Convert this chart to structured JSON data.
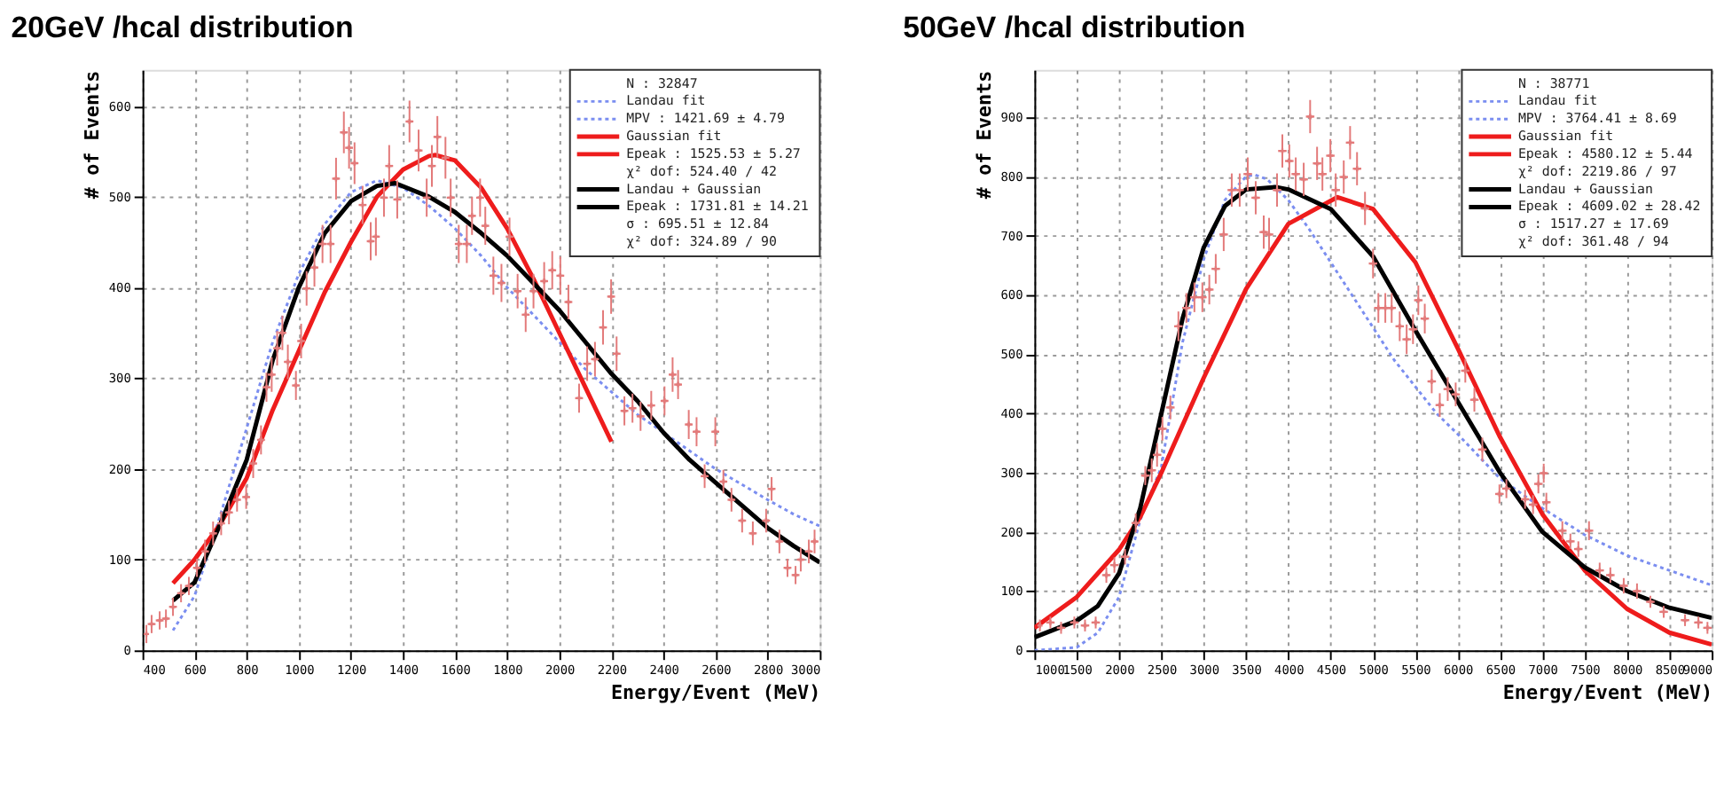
{
  "chart_data": [
    {
      "type": "line",
      "title": "20GeV /hcal distribution",
      "xlabel": "Energy/Event (MeV)",
      "ylabel": "# of Events",
      "xlim": [
        400,
        3000
      ],
      "ylim": [
        0,
        640
      ],
      "xticks": [
        400,
        600,
        800,
        1000,
        1200,
        1400,
        1600,
        1800,
        2000,
        2200,
        2400,
        2600,
        2800,
        3000
      ],
      "yticks": [
        0,
        100,
        200,
        300,
        400,
        500,
        600
      ],
      "grid": true,
      "legend": "top right",
      "annotations": [
        "N : 32847",
        "MPV : 1421.69 ± 4.79",
        "Epeak : 1525.53 ± 5.27",
        "χ² dof: 524.40 / 42",
        "Epeak : 1731.81 ± 14.21",
        "σ : 695.51 ± 12.84",
        "χ² dof: 324.89 / 90"
      ],
      "series": [
        {
          "type": "scatter",
          "marker": "cross",
          "color": "#e37a7a",
          "x": [
            415,
            435,
            466,
            490,
            517,
            548,
            578,
            609,
            640,
            671,
            702,
            732,
            763,
            798,
            825,
            855,
            876,
            896,
            917,
            937,
            958,
            989,
            1009,
            1030,
            1060,
            1091,
            1122,
            1143,
            1173,
            1193,
            1214,
            1245,
            1276,
            1296,
            1327,
            1347,
            1378,
            1425,
            1460,
            1491,
            1511,
            1532,
            1563,
            1583,
            1614,
            1645,
            1665,
            1696,
            1716,
            1747,
            1778,
            1809,
            1840,
            1871,
            1901,
            1942,
            1973,
            2004,
            2035,
            2076,
            2107,
            2137,
            2168,
            2199,
            2220,
            2250,
            2281,
            2312,
            2353,
            2404,
            2435,
            2456,
            2497,
            2527,
            2558,
            2599,
            2630,
            2661,
            2702,
            2743,
            2794,
            2815,
            2845,
            2876,
            2907,
            2927,
            2958,
            2980
          ],
          "values": [
            18,
            29,
            33,
            35,
            48,
            63,
            71,
            91,
            109,
            129,
            140,
            152,
            166,
            169,
            206,
            232,
            290,
            304,
            333,
            350,
            318,
            292,
            341,
            399,
            422,
            448,
            448,
            520,
            571,
            554,
            537,
            491,
            451,
            456,
            499,
            534,
            497,
            583,
            551,
            499,
            534,
            566,
            543,
            499,
            448,
            448,
            479,
            499,
            468,
            413,
            405,
            456,
            396,
            370,
            396,
            407,
            419,
            413,
            384,
            278,
            316,
            321,
            356,
            390,
            327,
            264,
            267,
            258,
            270,
            275,
            304,
            293,
            249,
            241,
            192,
            241,
            186,
            166,
            143,
            129,
            143,
            178,
            120,
            91,
            83,
            100,
            109,
            120
          ],
          "errors": [
            10,
            10,
            10,
            10,
            10,
            10,
            10,
            10,
            13,
            13,
            13,
            13,
            13,
            13,
            16,
            16,
            16,
            19,
            19,
            19,
            19,
            16,
            19,
            19,
            21,
            21,
            21,
            23,
            23,
            23,
            23,
            21,
            21,
            21,
            21,
            23,
            21,
            23,
            23,
            21,
            23,
            23,
            23,
            21,
            21,
            21,
            21,
            21,
            21,
            21,
            21,
            21,
            19,
            19,
            19,
            21,
            21,
            21,
            19,
            16,
            19,
            19,
            19,
            19,
            19,
            16,
            16,
            16,
            16,
            16,
            19,
            16,
            16,
            16,
            13,
            16,
            13,
            13,
            13,
            13,
            13,
            13,
            13,
            10,
            10,
            13,
            13,
            13
          ],
          "xerrors": [
            null,
            15,
            15,
            15,
            15,
            15,
            15,
            15,
            15,
            15,
            15,
            15,
            15,
            15,
            15,
            15,
            15,
            15,
            15,
            15,
            15,
            15,
            15,
            15,
            15,
            15,
            15,
            15,
            15,
            15,
            15,
            15,
            15,
            15,
            15,
            15,
            15,
            15,
            15,
            15,
            15,
            15,
            15,
            15,
            15,
            15,
            15,
            15,
            15,
            15,
            15,
            15,
            15,
            15,
            15,
            15,
            15,
            15,
            15,
            15,
            15,
            15,
            15,
            15,
            15,
            15,
            15,
            15,
            15,
            15,
            15,
            15,
            15,
            15,
            15,
            15,
            15,
            15,
            15,
            15,
            15,
            15,
            15,
            15,
            15,
            15,
            15,
            15
          ]
        },
        {
          "name": "Landau fit",
          "color": "#7b8ef0",
          "line_style": "dotted",
          "x": [
            517,
            600,
            700,
            800,
            900,
            1000,
            1100,
            1200,
            1300,
            1400,
            1500,
            1600,
            1700,
            1800,
            1900,
            2000,
            2100,
            2200,
            2300,
            2400,
            2500,
            2600,
            2700,
            2800,
            2900,
            3000
          ],
          "values": [
            22,
            60,
            150,
            245,
            340,
            415,
            470,
            505,
            518,
            510,
            490,
            465,
            435,
            400,
            370,
            340,
            310,
            285,
            260,
            240,
            220,
            200,
            183,
            166,
            150,
            137
          ]
        },
        {
          "name": "Gaussian fit",
          "color": "#ee1c1c",
          "line_style": "solid",
          "x": [
            517,
            600,
            700,
            800,
            900,
            1000,
            1100,
            1200,
            1300,
            1400,
            1500,
            1525,
            1600,
            1700,
            1800,
            1900,
            2000,
            2100,
            2200
          ],
          "values": [
            74,
            100,
            140,
            190,
            265,
            330,
            395,
            450,
            500,
            530,
            545,
            546,
            540,
            510,
            465,
            410,
            350,
            290,
            230
          ]
        },
        {
          "name": "Landau + Gaussian",
          "color": "#000000",
          "line_style": "solid",
          "x": [
            517,
            600,
            700,
            800,
            900,
            1000,
            1100,
            1200,
            1300,
            1370,
            1500,
            1600,
            1700,
            1800,
            1900,
            2000,
            2100,
            2200,
            2300,
            2400,
            2500,
            2600,
            2700,
            2800,
            2900,
            3000
          ],
          "values": [
            55,
            75,
            140,
            210,
            320,
            400,
            460,
            495,
            512,
            515,
            500,
            483,
            460,
            435,
            405,
            375,
            340,
            305,
            275,
            240,
            210,
            185,
            160,
            135,
            115,
            97
          ]
        }
      ]
    },
    {
      "type": "line",
      "title": "50GeV /hcal distribution",
      "xlabel": "Energy/Event (MeV)",
      "ylabel": "# of Events",
      "xlim": [
        1000,
        9000
      ],
      "ylim": [
        0,
        980
      ],
      "xticks": [
        1000,
        1500,
        2000,
        2500,
        3000,
        3500,
        4000,
        4500,
        5000,
        5500,
        6000,
        6500,
        7000,
        7500,
        8000,
        8500,
        9000
      ],
      "yticks": [
        0,
        100,
        200,
        300,
        400,
        500,
        600,
        700,
        800,
        900
      ],
      "grid": true,
      "legend": "top right",
      "annotations": [
        "N : 38771",
        "MPV : 3764.41 ± 8.69",
        "Epeak : 4580.12 ± 5.44",
        "χ² dof: 2219.86 / 97",
        "Epeak : 4609.02 ± 28.42",
        "σ : 1517.27 ± 17.69",
        "χ² dof: 361.48 / 94"
      ],
      "series": [
        {
          "type": "scatter",
          "marker": "cross",
          "color": "#e37a7a",
          "x": [
            1065,
            1189,
            1315,
            1472,
            1598,
            1724,
            1850,
            1945,
            2071,
            2197,
            2310,
            2386,
            2449,
            2512,
            2606,
            2701,
            2795,
            2890,
            2984,
            3066,
            3142,
            3236,
            3331,
            3425,
            3520,
            3614,
            3709,
            3772,
            3866,
            3929,
            4011,
            4087,
            4181,
            4257,
            4339,
            4402,
            4496,
            4559,
            4654,
            4729,
            4811,
            4905,
            5000,
            5063,
            5145,
            5220,
            5315,
            5397,
            5472,
            5535,
            5611,
            5693,
            5788,
            5882,
            5976,
            6090,
            6197,
            6291,
            6493,
            6575,
            6796,
            6890,
            6953,
            7016,
            7047,
            7236,
            7331,
            7425,
            7551,
            7677,
            7803,
            7961,
            8118,
            8276,
            8433,
            8685,
            8843,
            8950
          ],
          "values": [
            42,
            47,
            38,
            47,
            42,
            47,
            127,
            144,
            158,
            215,
            295,
            304,
            330,
            374,
            410,
            547,
            578,
            596,
            596,
            609,
            644,
            702,
            777,
            777,
            804,
            764,
            706,
            702,
            777,
            843,
            826,
            804,
            795,
            901,
            822,
            804,
            835,
            777,
            799,
            857,
            813,
            746,
            653,
            578,
            578,
            578,
            547,
            525,
            542,
            591,
            560,
            454,
            414,
            441,
            432,
            472,
            423,
            339,
            264,
            273,
            255,
            246,
            281,
            299,
            250,
            202,
            184,
            171,
            202,
            135,
            127,
            109,
            100,
            82,
            65,
            51,
            47,
            38
          ],
          "errors": [
            10,
            10,
            10,
            10,
            10,
            10,
            13,
            13,
            13,
            16,
            16,
            20,
            20,
            20,
            20,
            25,
            25,
            25,
            25,
            25,
            25,
            28,
            28,
            28,
            28,
            28,
            28,
            28,
            28,
            28,
            28,
            28,
            28,
            28,
            28,
            28,
            28,
            28,
            28,
            28,
            28,
            28,
            25,
            25,
            25,
            25,
            25,
            25,
            25,
            25,
            25,
            20,
            20,
            20,
            20,
            20,
            20,
            20,
            16,
            16,
            16,
            16,
            16,
            16,
            16,
            16,
            13,
            13,
            16,
            13,
            13,
            13,
            13,
            10,
            10,
            10,
            10,
            10
          ],
          "xerrors": [
            null,
            50,
            50,
            50,
            50,
            50,
            50,
            50,
            50,
            50,
            50,
            50,
            50,
            50,
            50,
            50,
            50,
            50,
            50,
            50,
            50,
            50,
            50,
            50,
            50,
            50,
            50,
            50,
            50,
            50,
            50,
            50,
            50,
            50,
            50,
            50,
            50,
            50,
            50,
            50,
            50,
            50,
            50,
            50,
            50,
            50,
            50,
            50,
            50,
            50,
            50,
            50,
            50,
            50,
            50,
            50,
            50,
            50,
            50,
            50,
            50,
            50,
            50,
            50,
            50,
            50,
            50,
            50,
            50,
            50,
            50,
            50,
            50,
            50,
            50,
            50,
            50,
            50
          ]
        },
        {
          "name": "Landau fit",
          "color": "#7b8ef0",
          "line_style": "dotted",
          "x": [
            1000,
            1500,
            1750,
            2000,
            2250,
            2500,
            2750,
            3000,
            3250,
            3500,
            3600,
            3750,
            4000,
            4250,
            4500,
            4750,
            5000,
            5250,
            5500,
            5750,
            6000,
            6500,
            7000,
            7500,
            8000,
            8500,
            9000
          ],
          "values": [
            0,
            5,
            30,
            90,
            220,
            310,
            520,
            660,
            760,
            800,
            803,
            795,
            760,
            710,
            655,
            600,
            545,
            490,
            445,
            400,
            365,
            290,
            240,
            195,
            160,
            135,
            110
          ]
        },
        {
          "name": "Gaussian fit",
          "color": "#ee1c1c",
          "line_style": "solid",
          "x": [
            1000,
            1500,
            2000,
            2250,
            2500,
            3000,
            3500,
            4000,
            4580,
            5000,
            5500,
            6000,
            6500,
            7000,
            7500,
            8000,
            8500,
            9000
          ],
          "values": [
            38,
            90,
            170,
            225,
            300,
            460,
            610,
            720,
            765,
            745,
            655,
            510,
            360,
            230,
            135,
            70,
            30,
            10
          ]
        },
        {
          "name": "Landau + Gaussian",
          "color": "#000000",
          "line_style": "solid",
          "x": [
            1000,
            1500,
            1750,
            2000,
            2250,
            2500,
            2750,
            3000,
            3250,
            3500,
            3850,
            4000,
            4500,
            5000,
            5500,
            6000,
            6500,
            7000,
            7500,
            8000,
            8500,
            9000
          ],
          "values": [
            22,
            50,
            75,
            130,
            240,
            400,
            560,
            680,
            750,
            778,
            782,
            778,
            745,
            665,
            540,
            420,
            300,
            200,
            140,
            100,
            72,
            55
          ]
        }
      ]
    }
  ]
}
